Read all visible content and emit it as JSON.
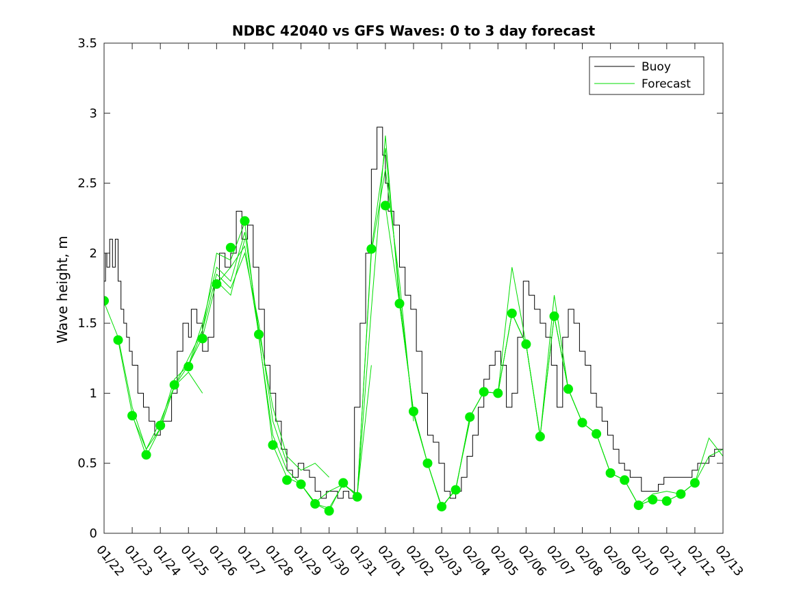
{
  "chart_data": {
    "type": "line",
    "title": "NDBC 42040 vs GFS Waves: 0 to 3 day forecast",
    "xlabel": "",
    "ylabel": "Wave height, m",
    "x_unit": "days since 01/22",
    "xlim": [
      0,
      22
    ],
    "ylim": [
      0,
      3.5
    ],
    "yticks": [
      0,
      0.5,
      1,
      1.5,
      2,
      2.5,
      3,
      3.5
    ],
    "ytick_labels": [
      "0",
      "0.5",
      "1",
      "1.5",
      "2",
      "2.5",
      "3",
      "3.5"
    ],
    "xtick_labels": [
      "01/22",
      "01/23",
      "01/24",
      "01/25",
      "01/26",
      "01/27",
      "01/28",
      "01/29",
      "01/30",
      "01/31",
      "02/01",
      "02/02",
      "02/03",
      "02/04",
      "02/05",
      "02/06",
      "02/07",
      "02/08",
      "02/09",
      "02/10",
      "02/11",
      "02/12",
      "02/13"
    ],
    "legend": {
      "location": "top-right",
      "entries": [
        {
          "label": "Buoy",
          "color": "#000000"
        },
        {
          "label": "Forecast",
          "color": "#00dd00"
        }
      ]
    },
    "buoy": {
      "name": "Buoy",
      "color": "#000000",
      "x": [
        0,
        0.05,
        0.1,
        0.2,
        0.3,
        0.4,
        0.5,
        0.6,
        0.7,
        0.8,
        0.9,
        1.0,
        1.2,
        1.4,
        1.6,
        1.8,
        2.0,
        2.2,
        2.4,
        2.6,
        2.8,
        3.0,
        3.1,
        3.3,
        3.5,
        3.7,
        3.9,
        4.1,
        4.3,
        4.5,
        4.7,
        4.9,
        5.1,
        5.3,
        5.5,
        5.7,
        5.9,
        6.1,
        6.3,
        6.5,
        6.7,
        6.9,
        7.1,
        7.3,
        7.5,
        7.7,
        7.9,
        8.1,
        8.3,
        8.5,
        8.7,
        8.9,
        9.1,
        9.3,
        9.5,
        9.7,
        9.9,
        10.0,
        10.1,
        10.3,
        10.5,
        10.7,
        10.9,
        11.1,
        11.3,
        11.5,
        11.7,
        11.9,
        12.1,
        12.3,
        12.5,
        12.7,
        12.9,
        13.1,
        13.3,
        13.5,
        13.7,
        13.9,
        14.1,
        14.3,
        14.5,
        14.7,
        14.9,
        15.1,
        15.3,
        15.5,
        15.7,
        15.9,
        16.1,
        16.3,
        16.5,
        16.7,
        16.9,
        17.1,
        17.3,
        17.5,
        17.7,
        17.9,
        18.1,
        18.3,
        18.5,
        18.7,
        18.9,
        19.1,
        19.3,
        19.5,
        19.7,
        19.9,
        20.1,
        20.3,
        20.5,
        20.7,
        20.9,
        21.1,
        21.3,
        21.5,
        21.7,
        21.9,
        22.0
      ],
      "y": [
        1.8,
        2.0,
        1.9,
        2.1,
        1.9,
        2.1,
        1.8,
        1.6,
        1.5,
        1.4,
        1.3,
        1.2,
        1.0,
        0.9,
        0.8,
        0.7,
        0.8,
        0.8,
        1.0,
        1.3,
        1.5,
        1.4,
        1.6,
        1.5,
        1.3,
        1.4,
        1.8,
        2.0,
        1.9,
        2.0,
        2.3,
        2.1,
        2.2,
        1.9,
        1.6,
        1.2,
        1.0,
        0.8,
        0.6,
        0.45,
        0.4,
        0.5,
        0.45,
        0.4,
        0.3,
        0.25,
        0.3,
        0.3,
        0.25,
        0.3,
        0.25,
        0.9,
        1.5,
        2.0,
        2.6,
        2.9,
        2.7,
        2.5,
        2.3,
        2.2,
        1.9,
        1.7,
        1.6,
        1.3,
        1.0,
        0.7,
        0.65,
        0.5,
        0.3,
        0.25,
        0.3,
        0.4,
        0.55,
        0.7,
        0.9,
        1.1,
        1.2,
        1.3,
        1.2,
        0.9,
        1.0,
        1.4,
        1.8,
        1.7,
        1.6,
        1.5,
        1.4,
        1.2,
        0.9,
        1.4,
        1.6,
        1.5,
        1.3,
        1.2,
        1.0,
        0.9,
        0.8,
        0.7,
        0.6,
        0.5,
        0.45,
        0.4,
        0.4,
        0.3,
        0.3,
        0.3,
        0.35,
        0.4,
        0.4,
        0.4,
        0.4,
        0.4,
        0.45,
        0.5,
        0.5,
        0.55,
        0.6,
        0.6,
        0.55
      ]
    },
    "forecast_runs": [
      {
        "name": "Forecast",
        "color": "#00dd00",
        "x": [
          0,
          0.5,
          1.0,
          1.5,
          2.0,
          2.5,
          3.0,
          3.5
        ],
        "y": [
          1.65,
          1.4,
          0.9,
          0.6,
          0.8,
          1.05,
          1.15,
          1.0
        ]
      },
      {
        "name": "Forecast",
        "color": "#00dd00",
        "x": [
          0.5,
          1.0,
          1.5,
          2.0,
          2.5,
          3.0,
          3.5,
          4.0,
          4.5,
          5.0
        ],
        "y": [
          1.38,
          0.85,
          0.55,
          0.75,
          1.05,
          1.2,
          1.4,
          1.8,
          1.7,
          2.1
        ]
      },
      {
        "name": "Forecast",
        "color": "#00dd00",
        "x": [
          1.0,
          1.5,
          2.0,
          2.5,
          3.0,
          3.5,
          4.0,
          4.5,
          5.0,
          5.5,
          6.0,
          6.5
        ],
        "y": [
          0.84,
          0.6,
          0.75,
          1.05,
          1.25,
          1.45,
          1.85,
          1.75,
          2.0,
          1.5,
          0.8,
          0.5
        ]
      },
      {
        "name": "Forecast",
        "color": "#00dd00",
        "x": [
          2.0,
          2.5,
          3.0,
          3.5,
          4.0,
          4.5,
          5.0,
          5.5,
          6.0,
          6.5,
          7.0,
          7.5,
          8.0
        ],
        "y": [
          0.77,
          1.1,
          1.2,
          1.5,
          1.9,
          1.8,
          2.15,
          1.45,
          0.9,
          0.55,
          0.45,
          0.5,
          0.4
        ]
      },
      {
        "name": "Forecast",
        "color": "#00dd00",
        "x": [
          3.0,
          3.5,
          4.0,
          4.5,
          5.0,
          5.5,
          6.0,
          6.5,
          7.0,
          7.5,
          8.0,
          8.5,
          9.0,
          9.5
        ],
        "y": [
          1.19,
          1.45,
          2.0,
          1.95,
          2.22,
          1.4,
          0.7,
          0.45,
          0.35,
          0.22,
          0.3,
          0.35,
          0.28,
          1.2
        ]
      },
      {
        "name": "Forecast",
        "color": "#00dd00",
        "x": [
          4.0,
          4.5,
          5.0,
          5.5,
          6.0,
          6.5,
          7.0,
          7.5,
          8.0,
          8.5,
          9.0,
          9.5,
          10.0,
          10.5,
          11.0
        ],
        "y": [
          1.78,
          1.9,
          2.05,
          1.42,
          0.63,
          0.4,
          0.35,
          0.21,
          0.18,
          0.35,
          0.27,
          2.0,
          2.6,
          1.8,
          0.8
        ]
      },
      {
        "name": "Forecast",
        "color": "#00dd00",
        "x": [
          7.0,
          7.5,
          8.0,
          8.5,
          9.0,
          9.5,
          10.0,
          10.5,
          11.0,
          11.5,
          12.0,
          12.5,
          13.0
        ],
        "y": [
          0.35,
          0.21,
          0.16,
          0.36,
          0.26,
          2.03,
          2.75,
          1.7,
          0.85,
          0.5,
          0.18,
          0.32,
          0.8
        ]
      },
      {
        "name": "Forecast",
        "color": "#00dd00",
        "x": [
          9.0,
          9.5,
          10.0,
          10.5,
          11.0,
          11.5,
          12.0,
          12.5,
          13.0,
          13.5,
          14.0,
          14.5,
          15.0,
          15.5
        ],
        "y": [
          0.26,
          1.6,
          2.84,
          1.64,
          0.87,
          0.5,
          0.19,
          0.31,
          0.83,
          1.01,
          1.0,
          1.57,
          1.35,
          0.7
        ]
      },
      {
        "name": "Forecast",
        "color": "#00dd00",
        "x": [
          10.0,
          10.5,
          11.0,
          11.5,
          12.0,
          12.5,
          13.0,
          13.5,
          14.0,
          14.5,
          15.0,
          15.5,
          16.0,
          16.5,
          17.0
        ],
        "y": [
          2.34,
          1.64,
          0.87,
          0.5,
          0.19,
          0.31,
          0.83,
          1.01,
          1.0,
          1.57,
          1.35,
          0.69,
          1.55,
          1.03,
          0.79
        ]
      },
      {
        "name": "Forecast",
        "color": "#00dd00",
        "x": [
          12.0,
          12.5,
          13.0,
          13.5,
          14.0,
          14.5,
          15.0,
          15.5,
          16.0,
          16.5,
          17.0,
          17.5,
          18.0,
          18.5,
          19.0
        ],
        "y": [
          0.19,
          0.31,
          0.83,
          1.01,
          1.0,
          1.9,
          1.35,
          0.69,
          1.7,
          1.03,
          0.79,
          0.71,
          0.43,
          0.38,
          0.2
        ]
      },
      {
        "name": "Forecast",
        "color": "#00dd00",
        "x": [
          14.0,
          14.5,
          15.0,
          15.5,
          16.0,
          16.5,
          17.0,
          17.5,
          18.0,
          18.5,
          19.0,
          19.5,
          20.0,
          20.5,
          21.0
        ],
        "y": [
          1.0,
          1.57,
          1.35,
          0.69,
          1.55,
          1.03,
          0.79,
          0.71,
          0.43,
          0.38,
          0.2,
          0.28,
          0.3,
          0.28,
          0.36
        ]
      },
      {
        "name": "Forecast",
        "color": "#00dd00",
        "x": [
          16.0,
          16.5,
          17.0,
          17.5,
          18.0,
          18.5,
          19.0,
          19.5,
          20.0,
          20.5,
          21.0,
          21.5,
          22.0
        ],
        "y": [
          1.55,
          1.03,
          0.79,
          0.71,
          0.43,
          0.38,
          0.2,
          0.24,
          0.23,
          0.28,
          0.36,
          0.55,
          0.6
        ]
      },
      {
        "name": "Forecast",
        "color": "#00dd00",
        "x": [
          19.0,
          19.5,
          20.0,
          20.5,
          21.0,
          21.5,
          22.0
        ],
        "y": [
          0.2,
          0.24,
          0.23,
          0.28,
          0.36,
          0.68,
          0.55
        ]
      }
    ],
    "forecast_points": {
      "name": "Forecast analysis",
      "color": "#00ee00",
      "x": [
        0,
        0.5,
        1.0,
        1.5,
        2.0,
        2.5,
        3.0,
        3.5,
        4.0,
        4.5,
        5.0,
        5.5,
        6.0,
        6.5,
        7.0,
        7.5,
        8.0,
        8.5,
        9.0,
        9.5,
        10.0,
        10.5,
        11.0,
        11.5,
        12.0,
        12.5,
        13.0,
        13.5,
        14.0,
        14.5,
        15.0,
        15.5,
        16.0,
        16.5,
        17.0,
        17.5,
        18.0,
        18.5,
        19.0,
        19.5,
        20.0,
        20.5,
        21.0
      ],
      "y": [
        1.66,
        1.38,
        0.84,
        0.56,
        0.77,
        1.06,
        1.19,
        1.39,
        1.78,
        2.04,
        2.23,
        1.42,
        0.63,
        0.38,
        0.35,
        0.21,
        0.16,
        0.36,
        0.26,
        2.03,
        2.34,
        1.64,
        0.87,
        0.5,
        0.19,
        0.31,
        0.83,
        1.01,
        1.0,
        1.57,
        1.35,
        0.69,
        1.55,
        1.03,
        0.79,
        0.71,
        0.43,
        0.38,
        0.2,
        0.24,
        0.23,
        0.28,
        0.36
      ]
    }
  }
}
